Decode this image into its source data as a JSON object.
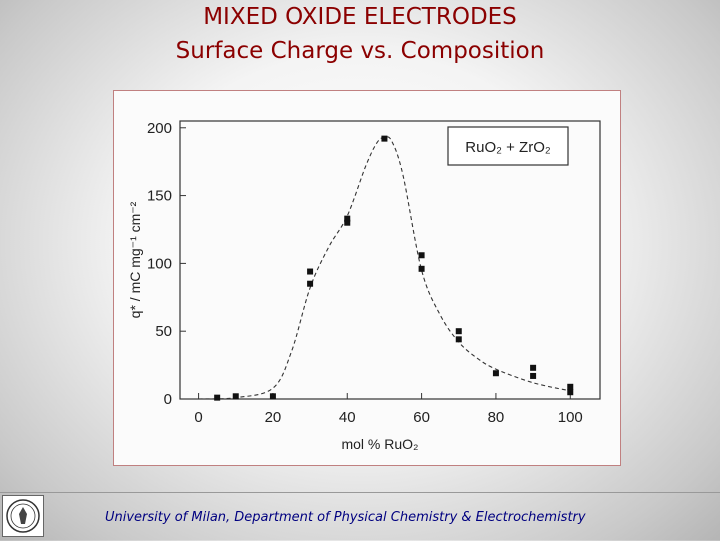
{
  "slide": {
    "title_line1": "MIXED OXIDE ELECTRODES",
    "title_line2": "Surface Charge vs. Composition",
    "footer": "University of Milan, Department of Physical Chemistry & Electrochemistry",
    "logo_icon": "university-seal-icon",
    "title_color": "#8b0000",
    "footer_color": "#000080"
  },
  "chart_data": {
    "type": "scatter",
    "legend": "RuO₂ + ZrO₂",
    "legend_placement": "top-right",
    "xlabel": "mol % RuO₂",
    "ylabel": "q* / mC mg⁻¹ cm⁻²",
    "xlim": [
      -5,
      108
    ],
    "ylim": [
      0,
      205
    ],
    "xticks": [
      "0",
      "20",
      "40",
      "60",
      "80",
      "100"
    ],
    "yticks": [
      "0",
      "50",
      "100",
      "150",
      "200"
    ],
    "grid": false,
    "series": [
      {
        "marker": "square",
        "x": [
          5,
          10,
          20,
          30,
          30,
          40,
          40,
          50,
          60,
          60,
          70,
          70,
          80,
          90,
          90,
          100,
          100
        ],
        "y": [
          1,
          2,
          2,
          94,
          85,
          133,
          130,
          192,
          106,
          96,
          50,
          44,
          19,
          23,
          17,
          9,
          5
        ]
      },
      {
        "style": "dashed",
        "x": [
          0,
          10,
          20,
          25,
          30,
          35,
          40,
          45,
          48,
          50,
          52,
          55,
          60,
          65,
          70,
          75,
          80,
          90,
          100
        ],
        "y": [
          0,
          1,
          8,
          35,
          82,
          112,
          135,
          172,
          189,
          193,
          190,
          165,
          95,
          62,
          42,
          30,
          22,
          12,
          6
        ]
      }
    ]
  }
}
